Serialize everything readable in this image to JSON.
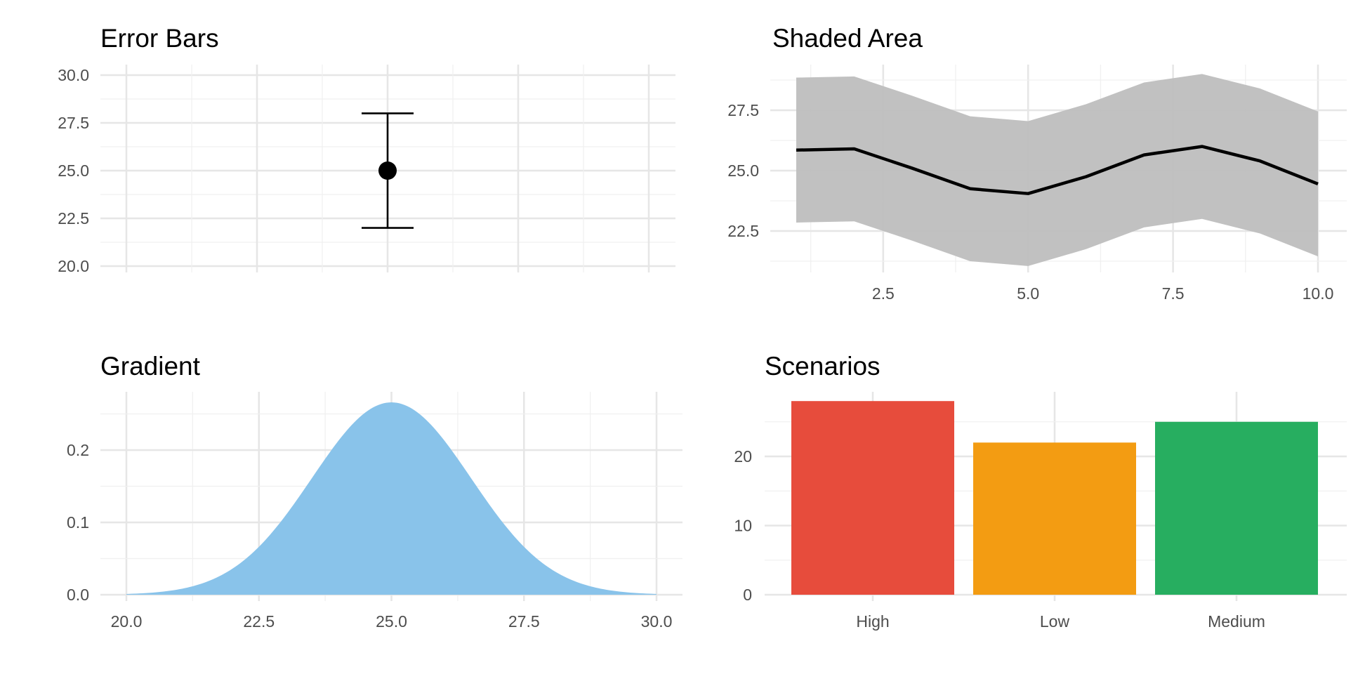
{
  "chart_data": [
    {
      "id": "errorbar",
      "type": "scatter",
      "title": "Error Bars",
      "xlabel": "",
      "ylabel": "",
      "ylim": [
        20,
        30
      ],
      "y_ticks": [
        "20.0",
        "22.5",
        "25.0",
        "27.5",
        "30.0"
      ],
      "x_tick_labels": [],
      "points": [
        {
          "x": 0,
          "y": 25,
          "ymin": 22,
          "ymax": 28
        }
      ],
      "color": "#000000",
      "grid": true
    },
    {
      "id": "ribbon",
      "type": "line",
      "title": "Shaded Area",
      "xlabel": "",
      "ylabel": "",
      "x": [
        1,
        2,
        3,
        4,
        5,
        6,
        7,
        8,
        9,
        10
      ],
      "y": [
        25.85,
        25.9,
        25.1,
        24.25,
        24.05,
        24.75,
        25.65,
        26.0,
        25.4,
        24.45
      ],
      "ymin": [
        22.85,
        22.9,
        22.1,
        21.25,
        21.05,
        21.75,
        22.65,
        23.0,
        22.4,
        21.45
      ],
      "ymax": [
        28.85,
        28.9,
        28.1,
        27.25,
        27.05,
        27.75,
        28.65,
        29.0,
        28.4,
        27.45
      ],
      "x_ticks": [
        "2.5",
        "5.0",
        "7.5",
        "10.0"
      ],
      "y_ticks": [
        "22.5",
        "25.0",
        "27.5"
      ],
      "line_color": "#000000",
      "band_color": "#bebebe",
      "grid": true
    },
    {
      "id": "density",
      "type": "area",
      "title": "Gradient",
      "xlabel": "",
      "ylabel": "",
      "distribution": {
        "mean": 25,
        "sd": 1.5
      },
      "xlim": [
        20,
        30
      ],
      "x_ticks": [
        "20.0",
        "22.5",
        "25.0",
        "27.5",
        "30.0"
      ],
      "y_ticks": [
        "0.0",
        "0.1",
        "0.2"
      ],
      "fill_color": "#85c1e9",
      "grid": true
    },
    {
      "id": "scenarios",
      "type": "bar",
      "title": "Scenarios",
      "xlabel": "",
      "ylabel": "",
      "categories": [
        "High",
        "Low",
        "Medium"
      ],
      "values": [
        28,
        22,
        25
      ],
      "colors": [
        "#e74c3c",
        "#f39c12",
        "#27ae60"
      ],
      "y_ticks": [
        "0",
        "10",
        "20"
      ],
      "grid": true
    }
  ]
}
